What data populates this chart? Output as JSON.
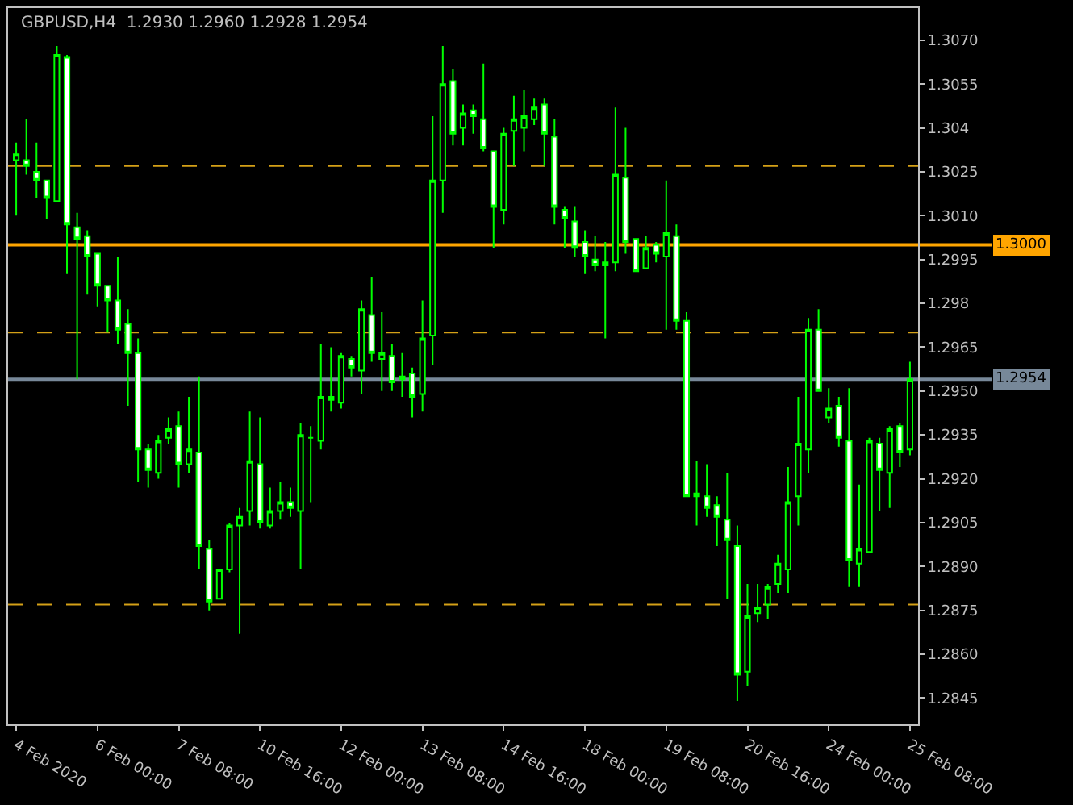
{
  "chart_data": {
    "type": "candlestick",
    "title": "GBPUSD,H4  1.2930 1.2960 1.2928 1.2954",
    "categories": [
      "4 Feb 2020",
      null,
      null,
      null,
      null,
      null,
      null,
      null,
      "6 Feb 00:00",
      null,
      null,
      null,
      null,
      null,
      null,
      null,
      "7 Feb 08:00",
      null,
      null,
      null,
      null,
      null,
      null,
      null,
      "10 Feb 16:00",
      null,
      null,
      null,
      null,
      null,
      null,
      null,
      "12 Feb 00:00",
      null,
      null,
      null,
      null,
      null,
      null,
      null,
      "13 Feb 08:00",
      null,
      null,
      null,
      null,
      null,
      null,
      null,
      "14 Feb 16:00",
      null,
      null,
      null,
      null,
      null,
      null,
      null,
      "18 Feb 00:00",
      null,
      null,
      null,
      null,
      null,
      null,
      null,
      "19 Feb 08:00",
      null,
      null,
      null,
      null,
      null,
      null,
      null,
      "20 Feb 16:00",
      null,
      null,
      null,
      null,
      null,
      null,
      null,
      "24 Feb 00:00",
      null,
      null,
      null,
      null,
      null,
      null,
      null,
      "25 Feb 08:00"
    ],
    "ohlc": [
      [
        1.3029,
        1.3035,
        1.301,
        1.3031
      ],
      [
        1.3029,
        1.3043,
        1.3024,
        1.3027
      ],
      [
        1.3025,
        1.3035,
        1.3016,
        1.3022
      ],
      [
        1.3022,
        1.3022,
        1.3009,
        1.3016
      ],
      [
        1.3015,
        1.3068,
        1.3015,
        1.3065
      ],
      [
        1.3064,
        1.3065,
        1.299,
        1.3007
      ],
      [
        1.3006,
        1.3011,
        1.2954,
        1.3002
      ],
      [
        1.3003,
        1.3005,
        1.2983,
        1.2996
      ],
      [
        1.2997,
        1.2997,
        1.2979,
        1.2986
      ],
      [
        1.2986,
        1.2986,
        1.297,
        1.2981
      ],
      [
        1.2981,
        1.2996,
        1.2966,
        1.2971
      ],
      [
        1.2973,
        1.2978,
        1.2945,
        1.2963
      ],
      [
        1.2963,
        1.2968,
        1.2919,
        1.293
      ],
      [
        1.293,
        1.2932,
        1.2917,
        1.2923
      ],
      [
        1.2922,
        1.2935,
        1.292,
        1.2933
      ],
      [
        1.2934,
        1.2941,
        1.2932,
        1.2937
      ],
      [
        1.2938,
        1.2943,
        1.2917,
        1.2925
      ],
      [
        1.2925,
        1.2948,
        1.2922,
        1.293
      ],
      [
        1.2929,
        1.2955,
        1.2889,
        1.2897
      ],
      [
        1.2896,
        1.2899,
        1.2875,
        1.2878
      ],
      [
        1.2879,
        1.2889,
        1.2879,
        1.2889
      ],
      [
        1.2889,
        1.2905,
        1.2888,
        1.2904
      ],
      [
        1.2904,
        1.291,
        1.2867,
        1.2907
      ],
      [
        1.2909,
        1.2943,
        1.2904,
        1.2926
      ],
      [
        1.2925,
        1.2941,
        1.2903,
        1.2905
      ],
      [
        1.2904,
        1.2917,
        1.2903,
        1.2909
      ],
      [
        1.2909,
        1.2919,
        1.2906,
        1.2912
      ],
      [
        1.2912,
        1.2917,
        1.2907,
        1.291
      ],
      [
        1.2909,
        1.2939,
        1.2889,
        1.2935
      ],
      [
        1.2934,
        1.2938,
        1.2912,
        1.2934
      ],
      [
        1.2933,
        1.2966,
        1.293,
        1.2948
      ],
      [
        1.2948,
        1.2965,
        1.2943,
        1.2947
      ],
      [
        1.2946,
        1.2963,
        1.2944,
        1.2962
      ],
      [
        1.2961,
        1.2962,
        1.2955,
        1.2958
      ],
      [
        1.2957,
        1.2981,
        1.2949,
        1.2978
      ],
      [
        1.2976,
        1.2989,
        1.296,
        1.2963
      ],
      [
        1.2961,
        1.2977,
        1.295,
        1.2963
      ],
      [
        1.2962,
        1.2966,
        1.295,
        1.2953
      ],
      [
        1.2954,
        1.2963,
        1.2948,
        1.2955
      ],
      [
        1.2956,
        1.2958,
        1.2941,
        1.2948
      ],
      [
        1.2949,
        1.2981,
        1.2943,
        1.2968
      ],
      [
        1.2969,
        1.3044,
        1.2959,
        1.3022
      ],
      [
        1.3022,
        1.3068,
        1.3011,
        1.3055
      ],
      [
        1.3056,
        1.306,
        1.3034,
        1.3038
      ],
      [
        1.304,
        1.3048,
        1.3034,
        1.3045
      ],
      [
        1.3046,
        1.3048,
        1.3038,
        1.3044
      ],
      [
        1.3043,
        1.3062,
        1.3032,
        1.3033
      ],
      [
        1.3032,
        1.3032,
        1.2999,
        1.3013
      ],
      [
        1.3012,
        1.304,
        1.3007,
        1.3038
      ],
      [
        1.3039,
        1.3051,
        1.3027,
        1.3043
      ],
      [
        1.304,
        1.3053,
        1.3032,
        1.3044
      ],
      [
        1.3043,
        1.305,
        1.3041,
        1.3047
      ],
      [
        1.3048,
        1.305,
        1.3027,
        1.3038
      ],
      [
        1.3037,
        1.3043,
        1.3007,
        1.3013
      ],
      [
        1.3012,
        1.3013,
        1.2999,
        1.3009
      ],
      [
        1.3008,
        1.3013,
        1.2996,
        1.2999
      ],
      [
        1.3001,
        1.3005,
        1.299,
        1.2996
      ],
      [
        1.2995,
        1.3003,
        1.2991,
        1.2993
      ],
      [
        1.2994,
        1.3001,
        1.2968,
        1.2993
      ],
      [
        1.2994,
        1.3047,
        1.2991,
        1.3024
      ],
      [
        1.3023,
        1.304,
        1.2997,
        1.3001
      ],
      [
        1.3002,
        1.3002,
        1.2991,
        1.2991
      ],
      [
        1.2992,
        1.3003,
        1.2992,
        1.2999
      ],
      [
        1.3,
        1.3001,
        1.2994,
        1.2997
      ],
      [
        1.2996,
        1.3022,
        1.2971,
        1.3004
      ],
      [
        1.3003,
        1.3007,
        1.2971,
        1.2974
      ],
      [
        1.2974,
        1.2977,
        1.2914,
        1.2914
      ],
      [
        1.2914,
        1.2926,
        1.2904,
        1.2915
      ],
      [
        1.2914,
        1.2925,
        1.2907,
        1.291
      ],
      [
        1.2911,
        1.2914,
        1.2897,
        1.2907
      ],
      [
        1.2906,
        1.2922,
        1.2879,
        1.2899
      ],
      [
        1.2897,
        1.2904,
        1.2844,
        1.2853
      ],
      [
        1.2854,
        1.2884,
        1.2849,
        1.2873
      ],
      [
        1.2874,
        1.2884,
        1.2871,
        1.2876
      ],
      [
        1.2877,
        1.2884,
        1.2872,
        1.2883
      ],
      [
        1.2884,
        1.2894,
        1.2881,
        1.2891
      ],
      [
        1.2889,
        1.2924,
        1.2881,
        1.2912
      ],
      [
        1.2914,
        1.2948,
        1.2904,
        1.2932
      ],
      [
        1.293,
        1.2975,
        1.2922,
        1.2971
      ],
      [
        1.2971,
        1.2978,
        1.295,
        1.295
      ],
      [
        1.2941,
        1.2951,
        1.2939,
        1.2944
      ],
      [
        1.2945,
        1.2948,
        1.2931,
        1.2934
      ],
      [
        1.2933,
        1.2951,
        1.2883,
        1.2892
      ],
      [
        1.2891,
        1.2918,
        1.2883,
        1.2896
      ],
      [
        1.2895,
        1.2934,
        1.2895,
        1.2933
      ],
      [
        1.2932,
        1.2934,
        1.2909,
        1.2923
      ],
      [
        1.2922,
        1.2938,
        1.291,
        1.2937
      ],
      [
        1.2938,
        1.2939,
        1.2924,
        1.2929
      ],
      [
        1.293,
        1.296,
        1.2928,
        1.2954
      ]
    ],
    "color": "#00ff00",
    "ylim": [
      1.2836,
      1.3081
    ],
    "yticks": [
      {
        "value": 1.307,
        "label": "1.3070"
      },
      1.3055,
      1.304,
      1.3025,
      {
        "value": 1.301,
        "label": "1.3010"
      },
      1.2995,
      1.298,
      1.2965,
      {
        "value": 1.295,
        "label": "1.2950"
      },
      1.2935,
      {
        "value": 1.292,
        "label": "1.2920"
      },
      1.2905,
      {
        "value": 1.289,
        "label": "1.2890"
      },
      1.2875,
      {
        "value": 1.286,
        "label": "1.2860"
      },
      1.2845
    ],
    "ref_lines": [
      {
        "axis": "y",
        "value": 1.3027,
        "label": null,
        "color": "#d4a017",
        "line_style": "dashed"
      },
      {
        "axis": "y",
        "value": 1.297,
        "label": null,
        "color": "#d4a017",
        "line_style": "dashed"
      },
      {
        "axis": "y",
        "value": 1.2877,
        "label": null,
        "color": "#d4a017",
        "line_style": "dashed"
      },
      {
        "axis": "y",
        "value": 1.3,
        "label": "1.3000",
        "color": "#ffa500",
        "line_style": "solid"
      },
      {
        "axis": "y",
        "value": 1.2954,
        "label": "1.2954",
        "color": "#778899",
        "line_style": "solid"
      }
    ],
    "grid": false,
    "legend": false
  }
}
